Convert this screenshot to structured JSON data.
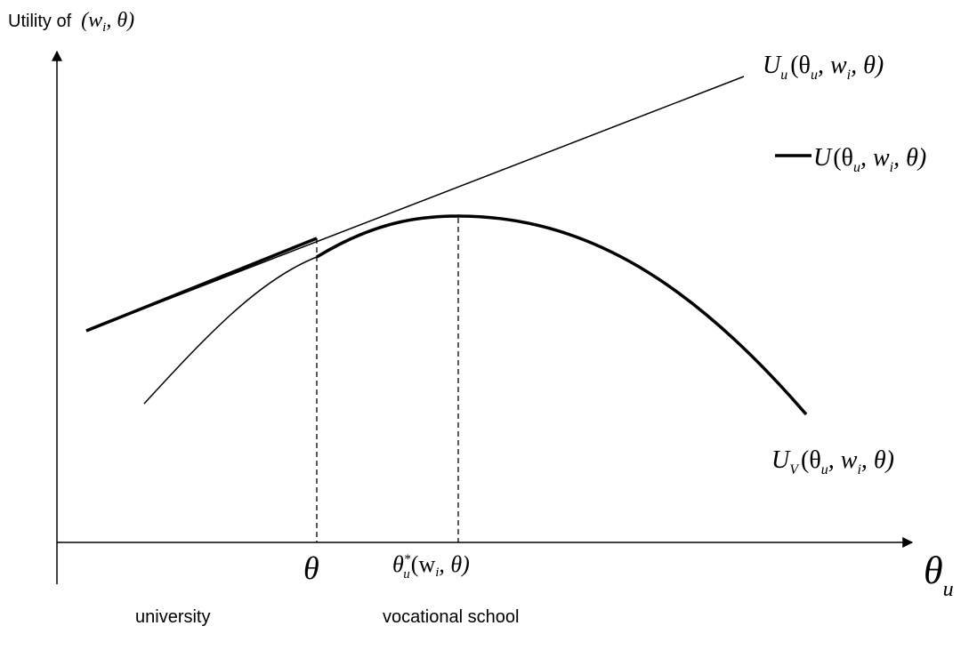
{
  "y_axis_label": {
    "prefix": "Utility of",
    "math": {
      "open": "(",
      "w": "w",
      "w_sub": "i",
      "sep": ", ",
      "theta": "θ",
      "close": ")"
    }
  },
  "x_axis_label": {
    "symbol": "θ",
    "sub": "u"
  },
  "curve_labels": {
    "U_u": {
      "name": "U",
      "sub": "u",
      "args": "(θ",
      "args_sub": "u",
      "rest": ", w",
      "rest_sub": "i",
      "tail": ", θ)"
    },
    "U": {
      "name": "U",
      "args": "(θ",
      "args_sub": "u",
      "rest": ", w",
      "rest_sub": "i",
      "tail": ", θ)"
    },
    "U_V": {
      "name": "U",
      "sub": "V",
      "args": "(θ",
      "args_sub": "u",
      "rest": ", w",
      "rest_sub": "i",
      "tail": ", θ)"
    }
  },
  "x_markers": {
    "theta": "θ",
    "theta_star": {
      "symbol": "θ",
      "sup": "*",
      "sub": "u",
      "args": "(w",
      "args_sub": "i",
      "tail": ", θ)"
    }
  },
  "regions": {
    "left": "university",
    "right": "vocational school"
  },
  "colors": {
    "ink": "#000000",
    "background": "#ffffff"
  }
}
